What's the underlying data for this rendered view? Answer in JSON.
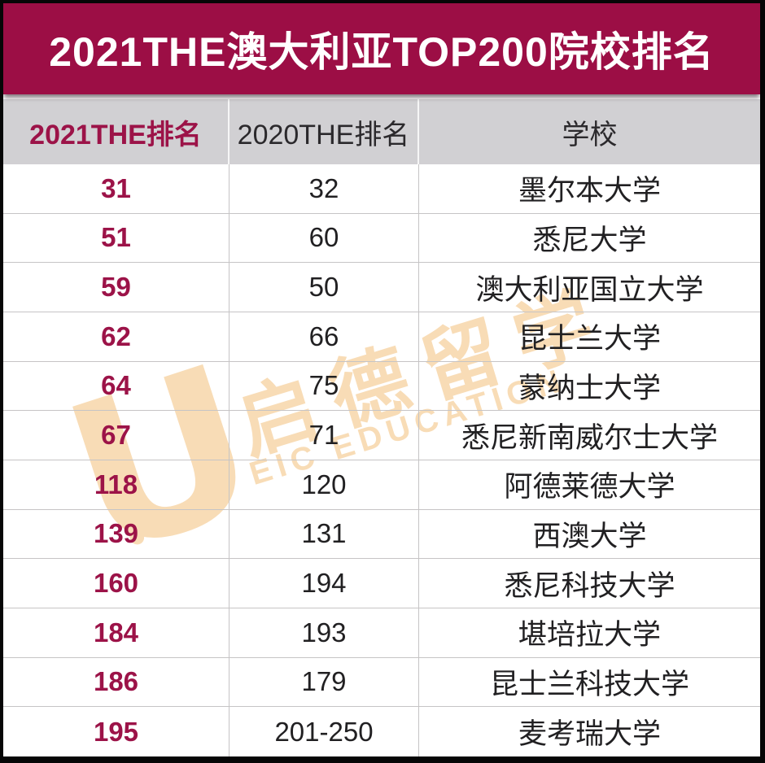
{
  "banner": {
    "title": "2021THE澳大利亚TOP200院校排名"
  },
  "table": {
    "headers": [
      "2021THE排名",
      "2020THE排名",
      "学校"
    ],
    "rows": [
      [
        "31",
        "32",
        "墨尔本大学"
      ],
      [
        "51",
        "60",
        "悉尼大学"
      ],
      [
        "59",
        "50",
        "澳大利亚国立大学"
      ],
      [
        "62",
        "66",
        "昆士兰大学"
      ],
      [
        "64",
        "75",
        "蒙纳士大学"
      ],
      [
        "67",
        "71",
        "悉尼新南威尔士大学"
      ],
      [
        "118",
        "120",
        "阿德莱德大学"
      ],
      [
        "139",
        "131",
        "西澳大学"
      ],
      [
        "160",
        "194",
        "悉尼科技大学"
      ],
      [
        "184",
        "193",
        "堪培拉大学"
      ],
      [
        "186",
        "179",
        "昆士兰科技大学"
      ],
      [
        "195",
        "201-250",
        "麦考瑞大学"
      ]
    ]
  },
  "watermark": {
    "logo_glyph": "U",
    "text_cn": "启德留学",
    "text_en": "EIC EDUCATION"
  },
  "colors": {
    "banner_bg": "#9C0E45",
    "accent_text": "#9C1348",
    "header_bg": "#D1D0D3",
    "grid_line": "#C6C4C5",
    "body_text": "#212022",
    "watermark": "#F8DCB6"
  }
}
